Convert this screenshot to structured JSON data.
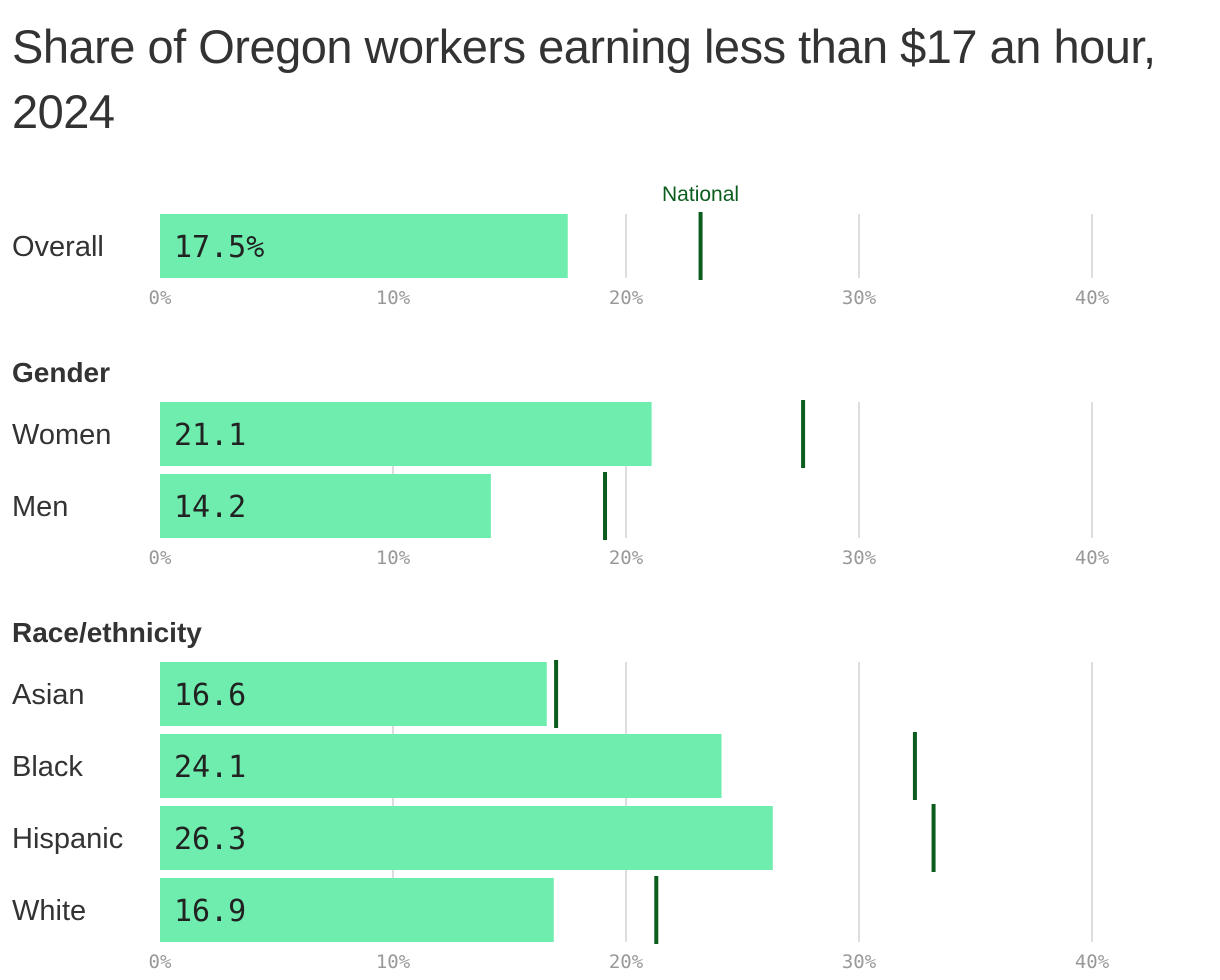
{
  "title": "Share of Oregon workers earning less than $17 an hour, 2024",
  "chart_data": {
    "type": "bar",
    "orientation": "horizontal",
    "xlim": [
      0,
      40
    ],
    "xticks": [
      0,
      10,
      20,
      30,
      40
    ],
    "xtick_labels": [
      "0%",
      "10%",
      "20%",
      "30%",
      "40%"
    ],
    "grid": true,
    "colors": {
      "bar": "#6eedaf",
      "marker": "#0b5d1e",
      "grid": "#dddddd"
    },
    "marker_series_label": "National",
    "groups": [
      {
        "name": "",
        "categories": [
          {
            "label": "Overall",
            "value": 17.5,
            "value_label": "17.5%",
            "national": 23.2
          }
        ]
      },
      {
        "name": "Gender",
        "categories": [
          {
            "label": "Women",
            "value": 21.1,
            "value_label": "21.1",
            "national": 27.6
          },
          {
            "label": "Men",
            "value": 14.2,
            "value_label": "14.2",
            "national": 19.1
          }
        ]
      },
      {
        "name": "Race/ethnicity",
        "categories": [
          {
            "label": "Asian",
            "value": 16.6,
            "value_label": "16.6",
            "national": 17.0
          },
          {
            "label": "Black",
            "value": 24.1,
            "value_label": "24.1",
            "national": 32.4
          },
          {
            "label": "Hispanic",
            "value": 26.3,
            "value_label": "26.3",
            "national": 33.2
          },
          {
            "label": "White",
            "value": 16.9,
            "value_label": "16.9",
            "national": 21.3
          }
        ]
      }
    ]
  }
}
